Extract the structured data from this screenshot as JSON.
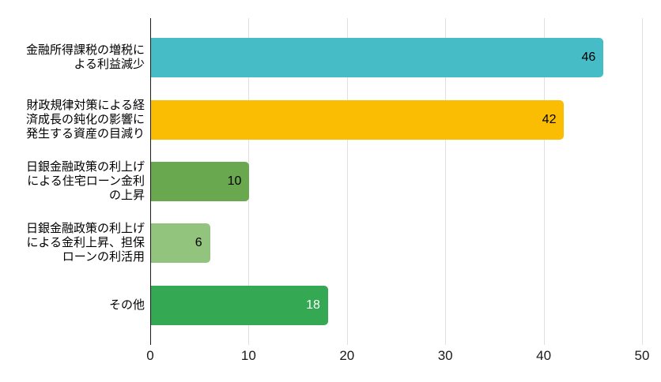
{
  "chart_data": {
    "type": "bar",
    "orientation": "horizontal",
    "title": "",
    "legend": "none",
    "grid": true,
    "categories": [
      "金融所得課税の増税による利益減少",
      "財政規律対策による経済成長の鈍化の影響に発生する資産の目減り",
      "日銀金融政策の利上げによる住宅ローン金利の上昇",
      "日銀金融政策の利上げによる金利上昇、担保ローンの利活用",
      "その他"
    ],
    "category_lines": [
      [
        "金融所得課税の増税に",
        "よる利益減少"
      ],
      [
        "財政規律対策による経",
        "済成長の鈍化の影響に",
        "発生する資産の目減り"
      ],
      [
        "日銀金融政策の利上げ",
        "による住宅ローン金利",
        "の上昇"
      ],
      [
        "日銀金融政策の利上げ",
        "による金利上昇、担保",
        "ローンの利活用"
      ],
      [
        "その他"
      ]
    ],
    "values": [
      46,
      42,
      10,
      6,
      18
    ],
    "data_labels": [
      "46",
      "42",
      "10",
      "6",
      "18"
    ],
    "bar_colors": [
      "#46bdc6",
      "#fbbc04",
      "#6aa84f",
      "#93c47d",
      "#34a853"
    ],
    "value_label_colors": [
      "#000000",
      "#000000",
      "#000000",
      "#000000",
      "#ffffff"
    ],
    "x_ticks": [
      "0",
      "10",
      "20",
      "30",
      "40",
      "50"
    ],
    "xlim": [
      0,
      50
    ],
    "xlabel": "",
    "ylabel": "",
    "gridline_color": "#e0e0e0",
    "baseline_color": "#1c1c1c",
    "tick_label_color": "#1a1a1a",
    "background_color": "#ffffff"
  }
}
